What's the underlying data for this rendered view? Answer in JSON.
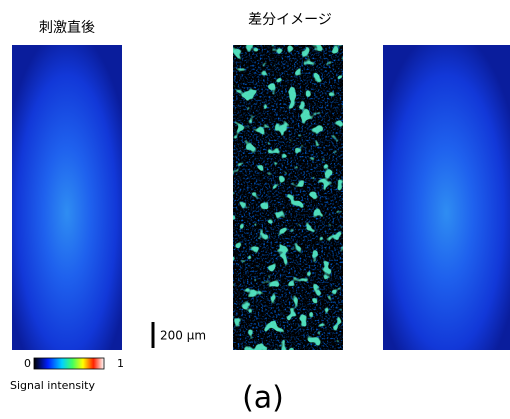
{
  "titles": {
    "left": "刺激直後",
    "middle": "差分イメージ"
  },
  "scale_bar": "200 µm",
  "colorbar": {
    "min": "0",
    "max": "1",
    "label": "Signal intensity"
  },
  "panel_label": "(a)"
}
